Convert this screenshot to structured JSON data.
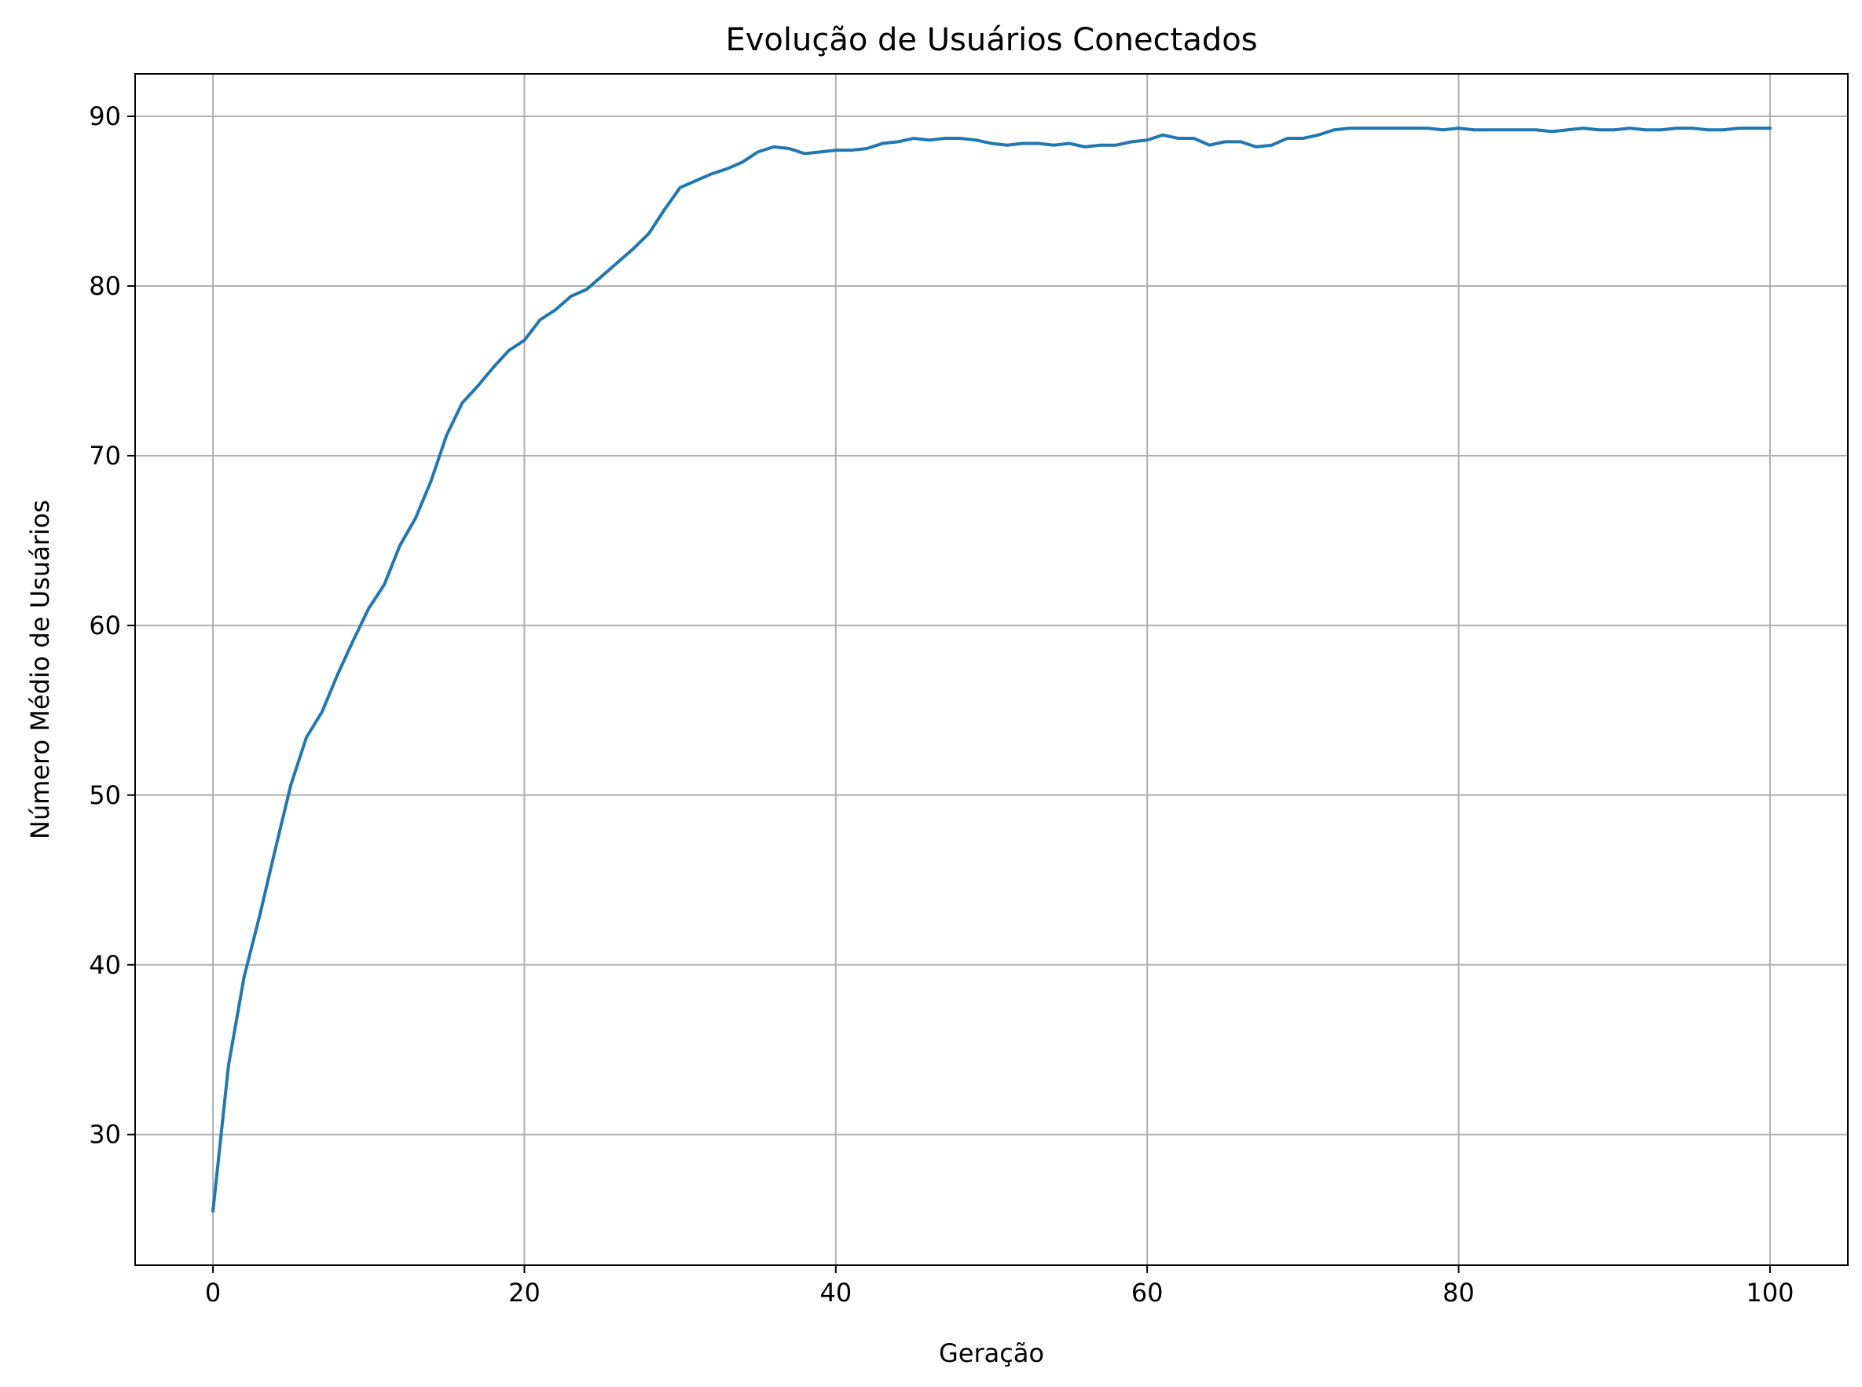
{
  "chart_data": {
    "type": "line",
    "title": "Evolução de Usuários Conectados",
    "xlabel": "Geração",
    "ylabel": "Número Médio de Usuários",
    "xlim": [
      -5,
      105
    ],
    "ylim": [
      22.3,
      92.5
    ],
    "xticks": [
      0,
      20,
      40,
      60,
      80,
      100
    ],
    "yticks": [
      30,
      40,
      50,
      60,
      70,
      80,
      90
    ],
    "grid": true,
    "colors": {
      "line": "#1f77b4",
      "grid": "#b0b0b0",
      "axes": "#000000"
    },
    "series": [
      {
        "x": [
          0,
          1,
          2,
          3,
          4,
          5,
          6,
          7,
          8,
          9,
          10,
          11,
          12,
          13,
          14,
          15,
          16,
          17,
          18,
          19,
          20,
          21,
          22,
          23,
          24,
          25,
          26,
          27,
          28,
          29,
          30,
          31,
          32,
          33,
          34,
          35,
          36,
          37,
          38,
          39,
          40,
          41,
          42,
          43,
          44,
          45,
          46,
          47,
          48,
          49,
          50,
          51,
          52,
          53,
          54,
          55,
          56,
          57,
          58,
          59,
          60,
          61,
          62,
          63,
          64,
          65,
          66,
          67,
          68,
          69,
          70,
          71,
          72,
          73,
          74,
          75,
          76,
          77,
          78,
          79,
          80,
          81,
          82,
          83,
          84,
          85,
          86,
          87,
          88,
          89,
          90,
          91,
          92,
          93,
          94,
          95,
          96,
          97,
          98,
          99,
          100
        ],
        "values": [
          25.5,
          34.1,
          39.3,
          42.9,
          46.8,
          50.6,
          53.4,
          54.9,
          57.1,
          59.1,
          61.0,
          62.4,
          64.7,
          66.3,
          68.5,
          71.2,
          73.1,
          74.1,
          75.2,
          76.2,
          76.8,
          78.0,
          78.6,
          79.4,
          79.8,
          80.6,
          81.4,
          82.2,
          83.1,
          84.5,
          85.8,
          86.2,
          86.6,
          86.9,
          87.3,
          87.9,
          88.2,
          88.1,
          87.8,
          87.9,
          88.0,
          88.0,
          88.1,
          88.4,
          88.5,
          88.7,
          88.6,
          88.7,
          88.7,
          88.6,
          88.4,
          88.3,
          88.4,
          88.4,
          88.3,
          88.4,
          88.2,
          88.3,
          88.3,
          88.5,
          88.6,
          88.9,
          88.7,
          88.7,
          88.3,
          88.5,
          88.5,
          88.2,
          88.3,
          88.7,
          88.7,
          88.9,
          89.2,
          89.3,
          89.3,
          89.3,
          89.3,
          89.3,
          89.3,
          89.2,
          89.3,
          89.2,
          89.2,
          89.2,
          89.2,
          89.2,
          89.1,
          89.2,
          89.3,
          89.2,
          89.2,
          89.3,
          89.2,
          89.2,
          89.3,
          89.3,
          89.2,
          89.2,
          89.3,
          89.3,
          89.3
        ]
      }
    ]
  }
}
